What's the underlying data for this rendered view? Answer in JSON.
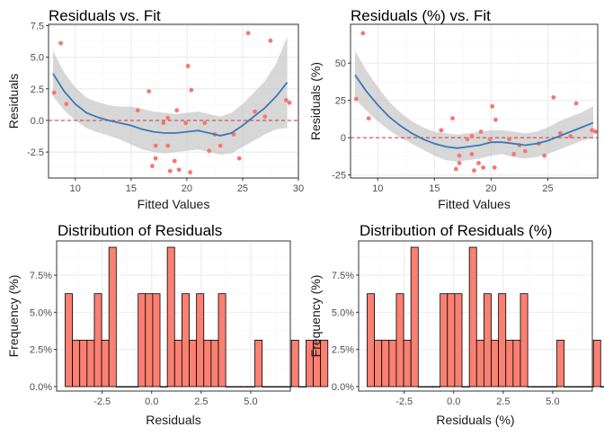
{
  "colors": {
    "point": "#F8766D",
    "smooth_line": "#3A78B6",
    "ribbon": "#BDBDBD",
    "zero_line": "#D7303A",
    "bar_fill": "#FA8072",
    "bar_stroke": "#000000",
    "grid_major": "#EBEBEB",
    "grid_minor": "#F5F5F5",
    "panel_border": "#333333"
  },
  "chart_data": [
    {
      "id": "resid_vs_fit",
      "type": "scatter",
      "title": "Residuals vs. Fit",
      "xlabel": "Fitted Values",
      "ylabel": "Residuals",
      "xlim": [
        7.6,
        30.0
      ],
      "ylim": [
        -4.55,
        7.6
      ],
      "xticks": [
        10,
        15,
        20,
        25,
        30
      ],
      "xticklabels": [
        "10",
        "15",
        "20",
        "25",
        "30"
      ],
      "yticks": [
        -2.5,
        0,
        2.5,
        5,
        7.5
      ],
      "yticklabels": [
        "-2.5",
        "0.0",
        "2.5",
        "5.0",
        "7.5"
      ],
      "grid": true,
      "reference_line": 0,
      "points": {
        "x": [
          8.1,
          8.7,
          9.2,
          15.6,
          16.6,
          16.9,
          17.2,
          17.2,
          17.9,
          18.3,
          18.3,
          18.5,
          18.9,
          19.1,
          19.3,
          19.9,
          20.1,
          20.3,
          20.4,
          21.6,
          22.0,
          22.5,
          23.0,
          24.2,
          24.7,
          25.5,
          26.1,
          27.0,
          27.5,
          28.9,
          29.2
        ],
        "y": [
          2.2,
          6.1,
          1.3,
          0.8,
          2.3,
          -3.6,
          -2.0,
          -3.0,
          -0.2,
          -2.0,
          0.2,
          -4.0,
          -3.2,
          0.8,
          -3.9,
          -0.2,
          4.3,
          -4.1,
          2.4,
          -0.2,
          -2.4,
          -1.1,
          -2.0,
          -1.1,
          -3.0,
          6.9,
          0.7,
          0.3,
          6.3,
          1.6,
          1.4
        ]
      },
      "smooth": {
        "x": [
          8,
          9,
          10,
          11,
          12,
          13,
          14,
          15,
          16,
          17,
          18,
          19,
          20,
          21,
          22,
          23,
          24,
          25,
          26,
          27,
          28,
          29
        ],
        "y": [
          3.7,
          2.3,
          1.3,
          0.6,
          0.25,
          0.0,
          -0.2,
          -0.4,
          -0.7,
          -0.9,
          -1.0,
          -1.0,
          -0.9,
          -0.8,
          -1.0,
          -1.2,
          -1.0,
          -0.4,
          0.3,
          1.0,
          1.9,
          3.0
        ],
        "lower": [
          1.9,
          0.8,
          0.0,
          -0.6,
          -0.95,
          -1.2,
          -1.5,
          -1.9,
          -2.3,
          -2.5,
          -2.6,
          -2.5,
          -2.4,
          -2.3,
          -2.5,
          -2.7,
          -2.6,
          -2.1,
          -1.6,
          -1.1,
          -0.7,
          -0.6
        ],
        "upper": [
          5.5,
          3.8,
          2.6,
          1.8,
          1.45,
          1.2,
          1.1,
          1.1,
          0.9,
          0.7,
          0.6,
          0.5,
          0.6,
          0.7,
          0.5,
          0.3,
          0.6,
          1.3,
          2.2,
          3.1,
          4.5,
          6.6
        ]
      }
    },
    {
      "id": "resid_pct_vs_fit",
      "type": "scatter",
      "title": "Residuals (%) vs. Fit",
      "xlabel": "Fitted Values",
      "ylabel": "Residuals (%)",
      "xlim": [
        7.6,
        29.4
      ],
      "ylim": [
        -27,
        76
      ],
      "xticks": [
        10,
        15,
        20,
        25
      ],
      "xticklabels": [
        "10",
        "15",
        "20",
        "25"
      ],
      "yticks": [
        -25,
        0,
        25,
        50
      ],
      "yticklabels": [
        "-25",
        "0",
        "25",
        "50"
      ],
      "grid": true,
      "reference_line": 0,
      "points": {
        "x": [
          8.1,
          8.7,
          9.2,
          15.6,
          16.6,
          16.9,
          17.2,
          17.2,
          17.9,
          18.3,
          18.3,
          18.5,
          18.9,
          19.1,
          19.3,
          19.9,
          20.1,
          20.3,
          20.4,
          21.6,
          22.0,
          22.5,
          23.0,
          24.2,
          24.7,
          25.5,
          26.1,
          27.0,
          27.5,
          28.9,
          29.2
        ],
        "y": [
          26,
          70,
          13,
          5,
          13,
          -21,
          -12,
          -17,
          -1,
          -11,
          1,
          -22,
          -17,
          4,
          -20,
          -1,
          21,
          -20,
          12,
          -1,
          -11,
          -5,
          -9,
          -4,
          -12,
          27,
          3,
          1,
          23,
          5,
          4
        ]
      },
      "smooth": {
        "x": [
          8,
          9,
          10,
          11,
          12,
          13,
          14,
          15,
          16,
          17,
          18,
          19,
          20,
          21,
          22,
          23,
          24,
          25,
          26,
          27,
          28,
          29
        ],
        "y": [
          42,
          31,
          22,
          14,
          8,
          3,
          -1,
          -4,
          -6,
          -7,
          -6,
          -5,
          -3,
          -3,
          -4,
          -5,
          -4,
          -2,
          1,
          4,
          7,
          10
        ],
        "lower": [
          26,
          18,
          11,
          5,
          0,
          -4,
          -8,
          -12,
          -15,
          -16,
          -15,
          -14,
          -12,
          -11,
          -13,
          -14,
          -13,
          -11,
          -8,
          -5,
          -2,
          0
        ],
        "upper": [
          58,
          45,
          34,
          24,
          17,
          11,
          7,
          4,
          3,
          2,
          3,
          4,
          5,
          5,
          4,
          3,
          4,
          7,
          11,
          14,
          17,
          21
        ]
      }
    },
    {
      "id": "dist_resid",
      "type": "bar",
      "title": "Distribution of Residuals",
      "xlabel": "Residuals",
      "ylabel": "Frequency (%)",
      "xlim": [
        -4.8,
        7.0
      ],
      "ylim": [
        -0.3,
        9.8
      ],
      "xticks": [
        -2.5,
        0,
        2.5,
        5
      ],
      "xticklabels": [
        "-2.5",
        "0.0",
        "2.5",
        "5.0"
      ],
      "yticks": [
        0,
        2.5,
        5,
        7.5
      ],
      "yticklabels": [
        "0.0%",
        "2.5%",
        "5.0%",
        "7.5%"
      ],
      "grid": true,
      "bin_start": -4.37,
      "bin_width": 0.3685,
      "values": [
        6.25,
        3.125,
        3.125,
        3.125,
        6.25,
        3.125,
        9.375,
        0,
        0,
        0,
        6.25,
        6.25,
        6.25,
        0,
        9.375,
        3.125,
        6.25,
        3.125,
        6.25,
        3.125,
        3.125,
        6.25,
        0,
        0,
        0,
        0,
        3.125,
        0,
        0,
        0,
        0,
        3.125,
        0,
        3.125,
        3.125,
        3.125
      ]
    },
    {
      "id": "dist_resid_pct",
      "type": "bar",
      "title": "Distribution of Residuals (%)",
      "xlabel": "Residuals (%)",
      "ylabel": "Frequency (%)",
      "xlim": [
        -4.8,
        7.0
      ],
      "ylim": [
        -0.3,
        9.8
      ],
      "xticks": [
        -2.5,
        0,
        2.5,
        5
      ],
      "xticklabels": [
        "-2.5",
        "0.0",
        "2.5",
        "5.0"
      ],
      "yticks": [
        0,
        2.5,
        5,
        7.5
      ],
      "yticklabels": [
        "0.0%",
        "2.5%",
        "5.0%",
        "7.5%"
      ],
      "grid": true,
      "bin_start": -4.37,
      "bin_width": 0.3685,
      "values": [
        6.25,
        3.125,
        3.125,
        3.125,
        6.25,
        3.125,
        9.375,
        0,
        0,
        0,
        6.25,
        6.25,
        6.25,
        0,
        9.375,
        3.125,
        6.25,
        3.125,
        6.25,
        3.125,
        3.125,
        6.25,
        0,
        0,
        0,
        0,
        3.125,
        0,
        0,
        0,
        0,
        3.125,
        0,
        3.125,
        3.125,
        3.125
      ]
    }
  ]
}
